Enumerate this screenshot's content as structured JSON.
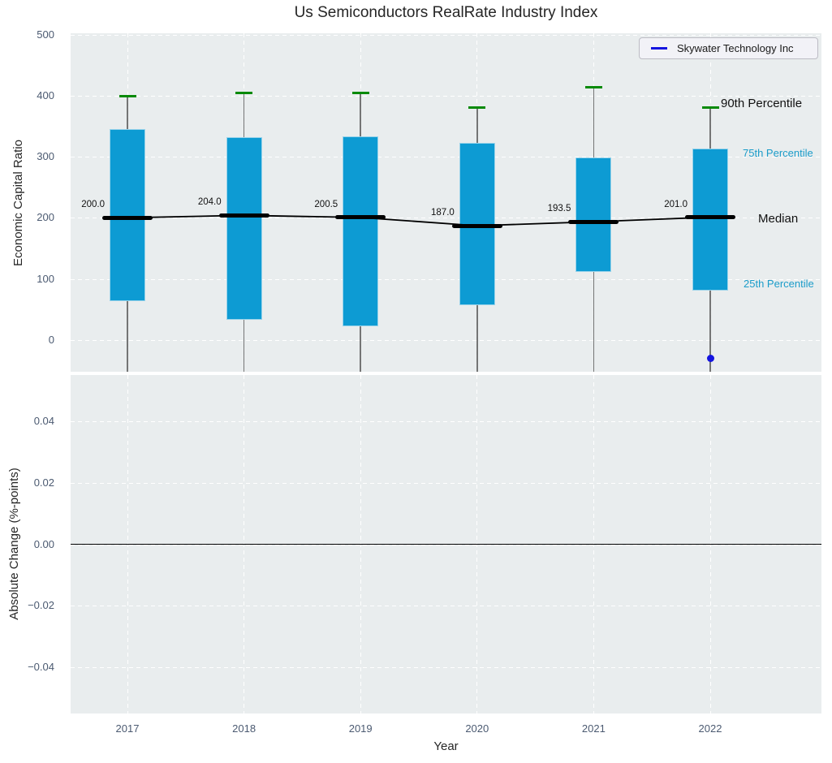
{
  "title": "Us Semiconductors RealRate Industry Index",
  "legend": {
    "label": "Skywater Technology Inc"
  },
  "colors": {
    "box_fill": "#0d9bd3",
    "percentile_cap_green": "#078a07",
    "median_black": "#000000",
    "whisker_gray": "#555555",
    "skywater_blue": "#1414e0",
    "panel_bg": "#e9edee",
    "grid_white": "#ffffff",
    "tick_label": "#4b5a71",
    "percentile_label_cyan": "#1b9cc9"
  },
  "chart_data": {
    "type": "boxplot",
    "categories": [
      "2017",
      "2018",
      "2019",
      "2020",
      "2021",
      "2022"
    ],
    "xlabel": "Year",
    "top_panel": {
      "ylabel": "Economic Capital Ratio",
      "ylim": [
        -52,
        502
      ],
      "yticks": [
        0,
        100,
        200,
        300,
        400,
        500
      ],
      "series": {
        "p90": [
          399,
          404,
          405,
          381,
          413,
          380
        ],
        "p75": [
          345,
          332,
          333,
          322,
          299,
          314
        ],
        "median": [
          200.0,
          204.0,
          200.5,
          187.0,
          193.5,
          201.0
        ],
        "p25": [
          64,
          33,
          23,
          57,
          112,
          81
        ]
      },
      "median_labels": [
        "200.0",
        "204.0",
        "200.5",
        "187.0",
        "193.5",
        "201.0"
      ],
      "annotations": {
        "p90": "90th Percentile",
        "p75": "75th Percentile",
        "median": "Median",
        "p25": "25th Percentile"
      },
      "skywater_point": {
        "year": "2022",
        "value": -30
      }
    },
    "bottom_panel": {
      "ylabel": "Absolute Change (%-points)",
      "ylim": [
        -0.055,
        0.055
      ],
      "yticks": [
        {
          "label": "0.04",
          "value": 0.04
        },
        {
          "label": "0.02",
          "value": 0.02
        },
        {
          "label": "0.00",
          "value": 0.0
        },
        {
          "label": "−0.02",
          "value": -0.02
        },
        {
          "label": "−0.04",
          "value": -0.04
        }
      ],
      "zero_line": true
    }
  }
}
